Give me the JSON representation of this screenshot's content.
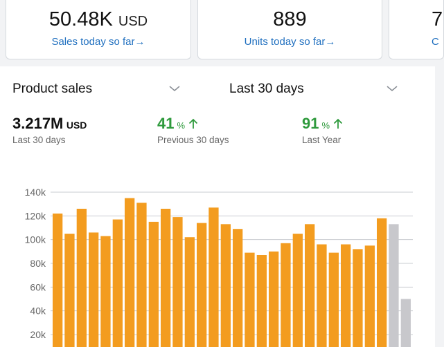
{
  "cards": [
    {
      "value": "50.48K",
      "unit": "USD",
      "link": "Sales today so far"
    },
    {
      "value": "889",
      "unit": "",
      "link": "Units today so far"
    },
    {
      "value": "7",
      "unit": "",
      "link": "C"
    }
  ],
  "controls": {
    "metric_dropdown": "Product sales",
    "range_dropdown": "Last 30 days"
  },
  "summary": {
    "total_value": "3.217M",
    "total_unit": "USD",
    "total_caption": "Last 30 days",
    "prev_pct": "41",
    "prev_caption": "Previous 30 days",
    "year_pct": "91",
    "year_caption": "Last Year",
    "pct_symbol": "%"
  },
  "colors": {
    "bar": "#f39c1f",
    "bar_future": "#c8c8cc",
    "up": "#2e9a3c",
    "link": "#1f6fbf"
  },
  "chart_data": {
    "type": "bar",
    "ylim": [
      0,
      140000
    ],
    "yticks": [
      20000,
      40000,
      60000,
      80000,
      100000,
      120000,
      140000
    ],
    "ytick_labels": [
      "20k",
      "40k",
      "60k",
      "80k",
      "100k",
      "120k",
      "140k"
    ],
    "series": [
      {
        "values": [
          122000,
          105000,
          126000,
          106000,
          103000,
          117000,
          135000,
          131000,
          115000,
          126000,
          119000,
          102000,
          114000,
          127000,
          113000,
          109000,
          89000,
          87000,
          90000,
          97000,
          105000,
          113000,
          96000,
          89000,
          96000,
          92000,
          95000,
          118000
        ]
      },
      {
        "values": [
          113000,
          50000
        ]
      }
    ]
  }
}
